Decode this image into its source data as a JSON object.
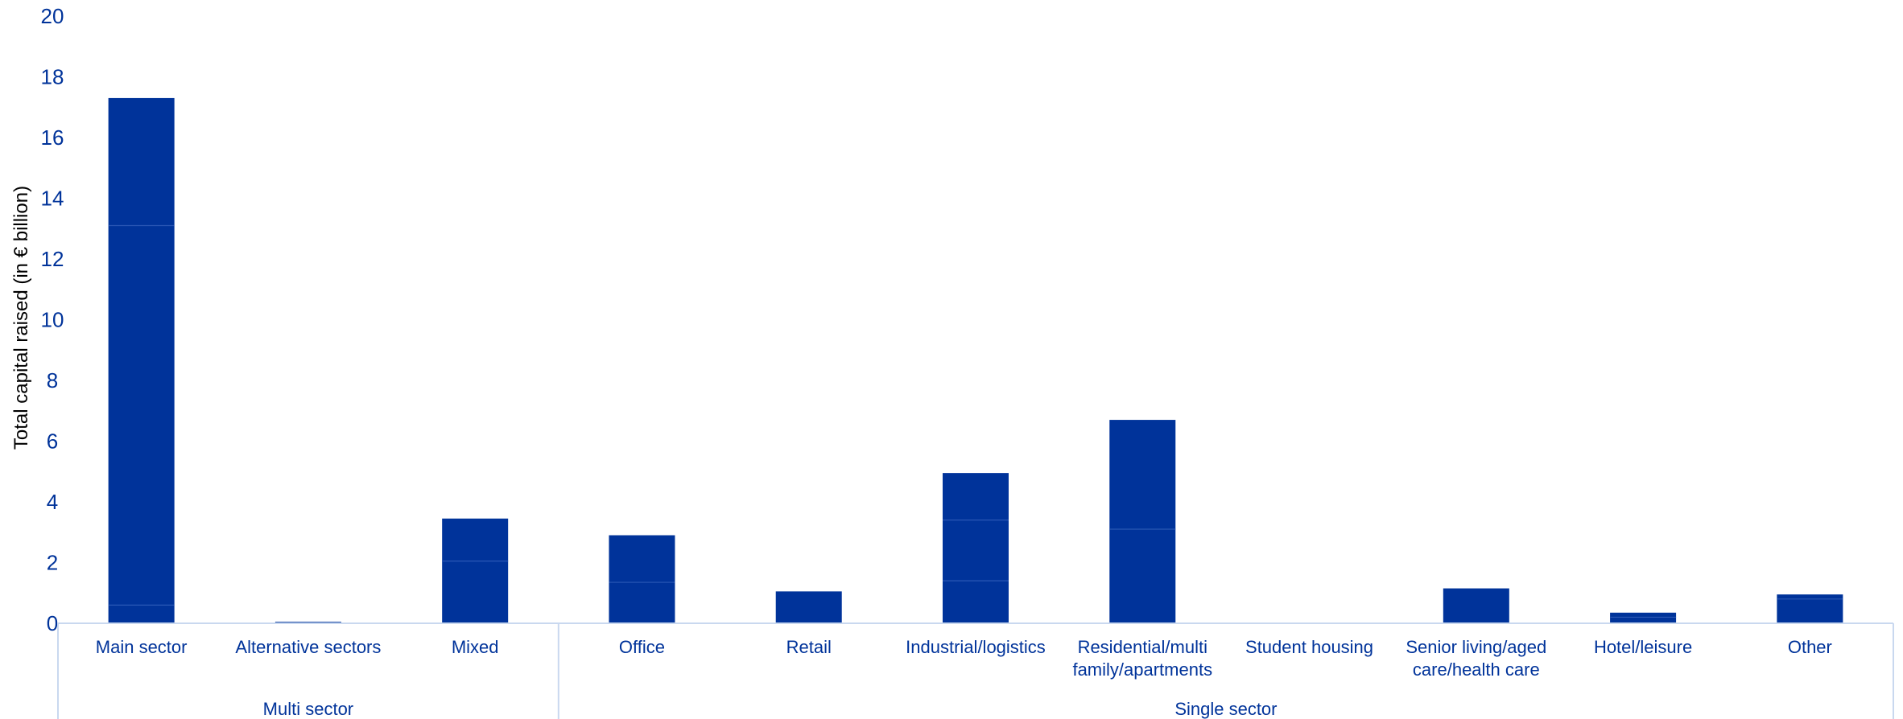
{
  "chart_data": {
    "type": "bar",
    "stacked": true,
    "ylabel": "Total capital raised (in € billion)",
    "ylim": [
      0,
      20
    ],
    "yticks": [
      0,
      2,
      4,
      6,
      8,
      10,
      12,
      14,
      16,
      18,
      20
    ],
    "grid": false,
    "groups": [
      {
        "label": "Multi sector",
        "categories": [
          "Main sector",
          "Alternative sectors",
          "Mixed"
        ]
      },
      {
        "label": "Single sector",
        "categories": [
          "Office",
          "Retail",
          "Industrial/logistics",
          "Residential/multi family/apartments",
          "Student housing",
          "Senior living/aged care/health care",
          "Hotel/leisure",
          "Other"
        ]
      }
    ],
    "categories": [
      [
        "Main sector"
      ],
      [
        "Alternative sectors"
      ],
      [
        "Mixed"
      ],
      [
        "Office"
      ],
      [
        "Retail"
      ],
      [
        "Industrial/logistics"
      ],
      [
        "Residential/multi",
        "family/apartments"
      ],
      [
        "Student housing"
      ],
      [
        "Senior living/aged",
        "care/health care"
      ],
      [
        "Hotel/leisure"
      ],
      [
        "Other"
      ]
    ],
    "stacks": [
      [
        0.6,
        12.5,
        4.2
      ],
      [
        0.05
      ],
      [
        2.05,
        1.4
      ],
      [
        1.35,
        1.55
      ],
      [
        1.05
      ],
      [
        1.4,
        2.0,
        1.55
      ],
      [
        3.1,
        3.6
      ],
      [
        0
      ],
      [
        1.15
      ],
      [
        0.2,
        0.15
      ],
      [
        0.8,
        0.15
      ]
    ],
    "totals": [
      17.3,
      0.05,
      3.45,
      2.9,
      1.05,
      4.95,
      6.7,
      0,
      1.15,
      0.35,
      0.95
    ],
    "bar_color": "#00339a",
    "text_color": "#00339a",
    "frame_color": "#c9d8ef"
  }
}
